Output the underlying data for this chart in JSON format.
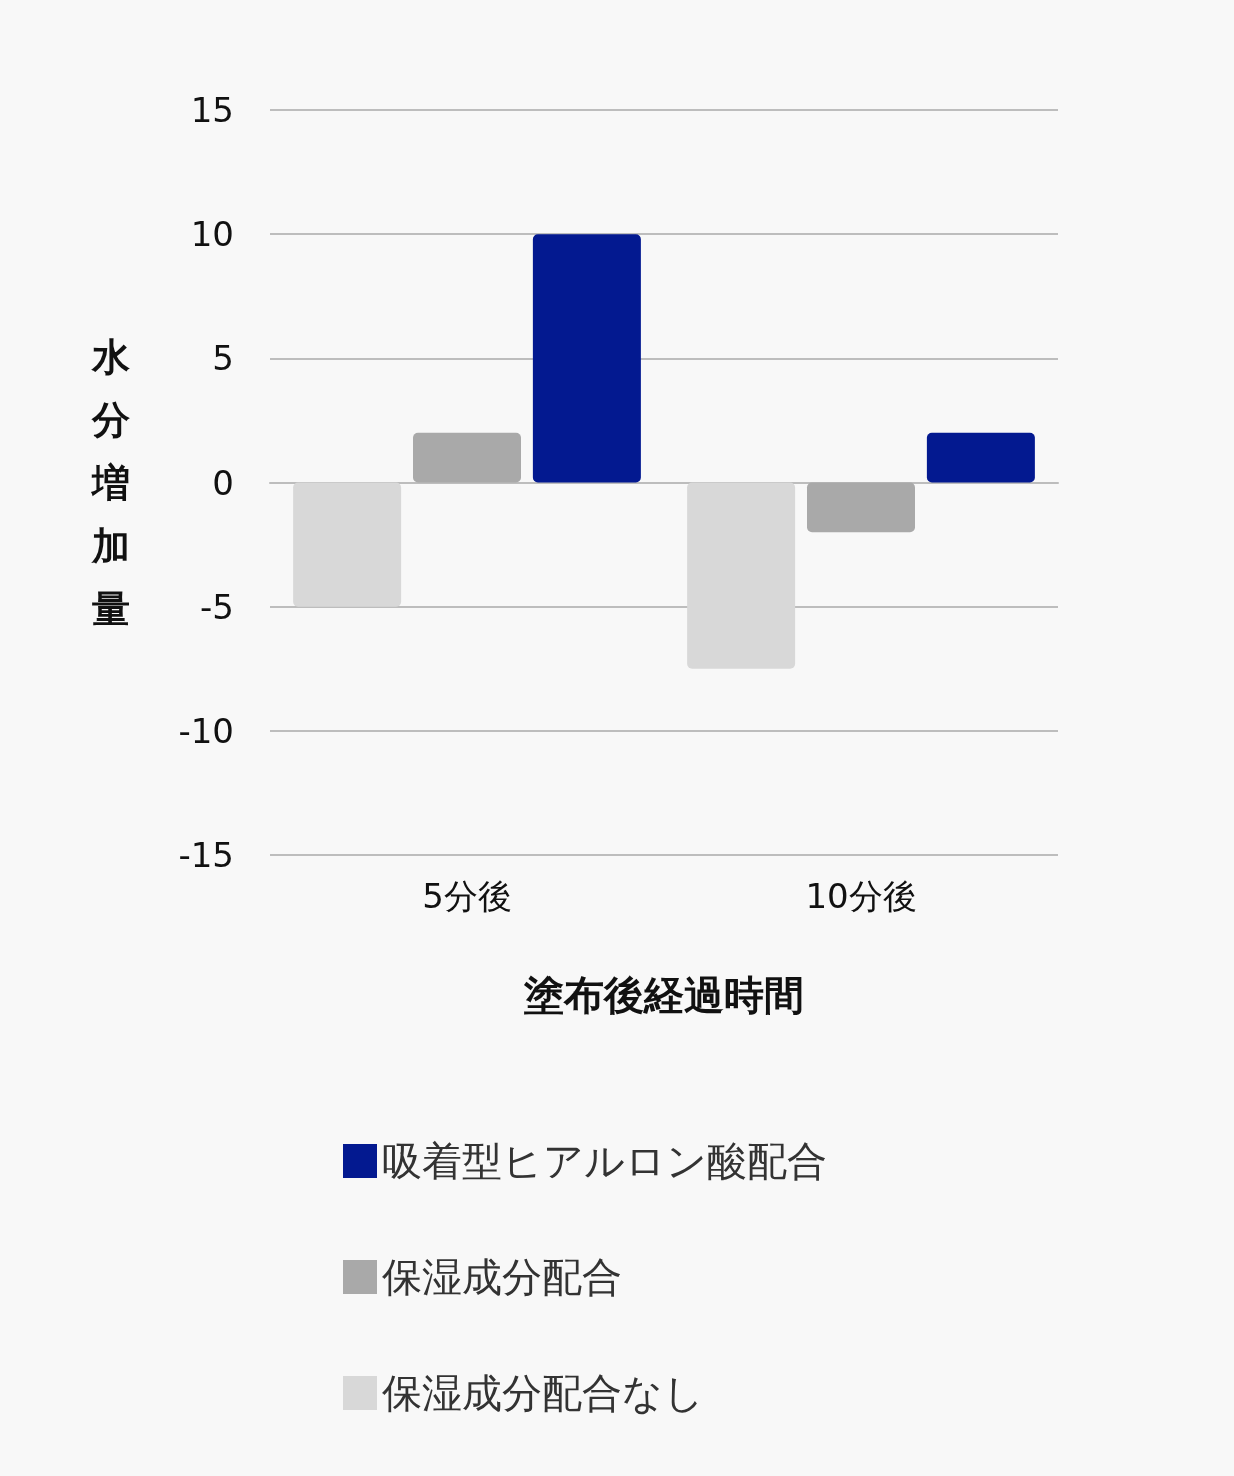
{
  "chart_data": {
    "type": "bar",
    "categories": [
      "5分後",
      "10分後"
    ],
    "xlabel": "塗布後経過時間",
    "ylabel": "水分増加量",
    "series": [
      {
        "name": "保湿成分配合なし",
        "color": "#d8d8d8",
        "values": [
          -5,
          -7.5
        ]
      },
      {
        "name": "保湿成分配合",
        "color": "#a9a9a9",
        "values": [
          2,
          -2
        ]
      },
      {
        "name": "吸着型ヒアルロン酸配合",
        "color": "#031990",
        "values": [
          10,
          2
        ]
      }
    ],
    "ylim": [
      -15,
      15
    ],
    "yticks": [
      -15,
      -10,
      -5,
      0,
      5,
      10,
      15
    ],
    "grid": "y",
    "legend": "bottom"
  }
}
